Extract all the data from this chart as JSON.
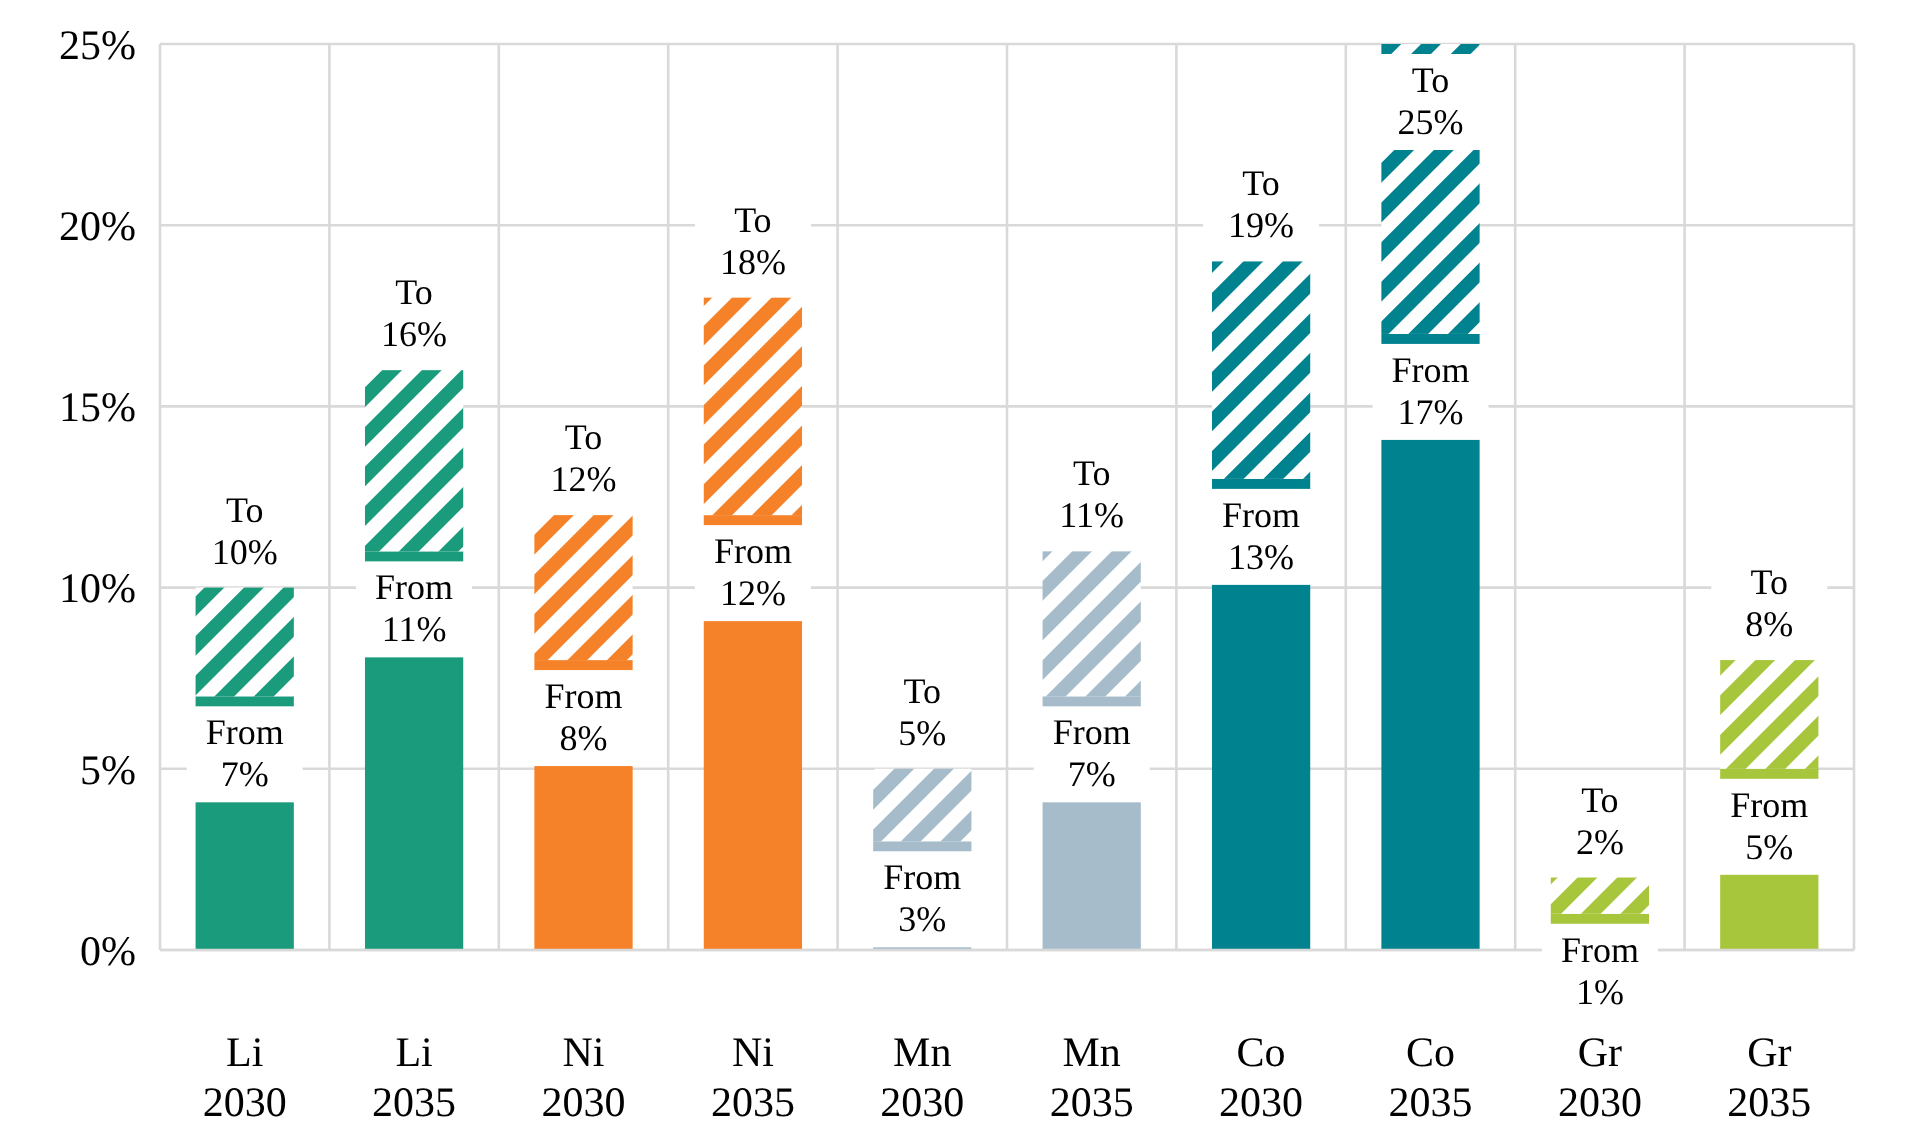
{
  "chart_data": {
    "type": "bar",
    "stacked": true,
    "categories": [
      "Li\n2030",
      "Li\n2035",
      "Ni\n2030",
      "Ni\n2035",
      "Mn\n2030",
      "Mn\n2035",
      "Co\n2030",
      "Co\n2035",
      "Gr\n2030",
      "Gr\n2035"
    ],
    "series": [
      {
        "values": [
          7,
          11,
          8,
          12,
          3,
          7,
          13,
          17,
          1,
          5
        ],
        "colors": [
          "#1a9b7b",
          "#1a9b7b",
          "#f58228",
          "#f58228",
          "#a6bccb",
          "#a6bccb",
          "#00828f",
          "#00828f",
          "#a8c63c",
          "#a8c63c"
        ],
        "value_labels": [
          "From\n7%",
          "From\n11%",
          "From\n8%",
          "From\n12%",
          "From\n3%",
          "From\n7%",
          "From\n13%",
          "From\n17%",
          "From\n1%",
          "From\n5%"
        ]
      },
      {
        "values": [
          3,
          5,
          4,
          6,
          2,
          4,
          6,
          8,
          1,
          3
        ],
        "colors": [
          "#1a9b7b",
          "#1a9b7b",
          "#f58228",
          "#f58228",
          "#a6bccb",
          "#a6bccb",
          "#00828f",
          "#00828f",
          "#a8c63c",
          "#a8c63c"
        ],
        "value_labels": [
          "To\n10%",
          "To\n16%",
          "To\n12%",
          "To\n18%",
          "To\n5%",
          "To\n11%",
          "To\n19%",
          "To\n25%",
          "To\n2%",
          "To\n8%"
        ]
      }
    ],
    "ylim": [
      0,
      25
    ],
    "yticks": [
      {
        "value": 0,
        "label": "0%"
      },
      {
        "value": 5,
        "label": "5%"
      },
      {
        "value": 10,
        "label": "10%"
      },
      {
        "value": 15,
        "label": "15%"
      },
      {
        "value": 20,
        "label": "20%"
      },
      {
        "value": 25,
        "label": "25%"
      }
    ],
    "grid": true
  }
}
